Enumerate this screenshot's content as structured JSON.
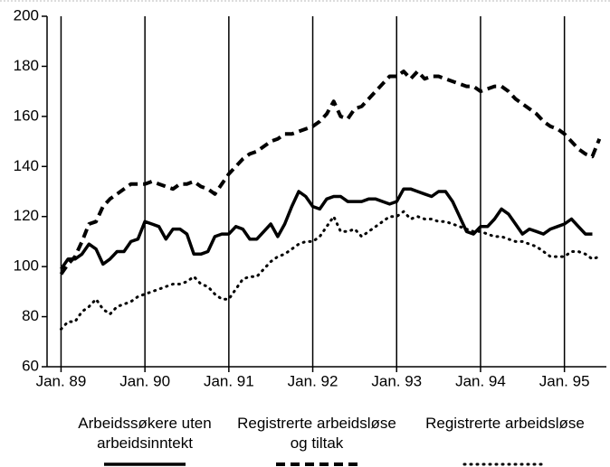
{
  "chart_data": {
    "type": "line",
    "xlim": [
      -2,
      78
    ],
    "ylim": [
      60,
      200
    ],
    "yticks": [
      60,
      80,
      100,
      120,
      140,
      160,
      180,
      200
    ],
    "xticks": [
      {
        "value": 0,
        "label": "Jan. 89"
      },
      {
        "value": 12,
        "label": "Jan. 90"
      },
      {
        "value": 24,
        "label": "Jan. 91"
      },
      {
        "value": 36,
        "label": "Jan. 92"
      },
      {
        "value": 48,
        "label": "Jan. 93"
      },
      {
        "value": 60,
        "label": "Jan. 94"
      },
      {
        "value": 72,
        "label": "Jan. 95"
      }
    ],
    "grid": true,
    "legend": "bottom",
    "series": [
      {
        "name": "Arbeidssøkere uten arbeidsinntekt",
        "color": "#000000",
        "dash": "solid",
        "x": [
          0,
          1,
          2,
          3,
          4,
          5,
          6,
          7,
          8,
          9,
          10,
          11,
          12,
          13,
          14,
          15,
          16,
          17,
          18,
          19,
          20,
          21,
          22,
          23,
          24,
          25,
          26,
          27,
          28,
          29,
          30,
          31,
          32,
          33,
          34,
          35,
          36,
          37,
          38,
          39,
          40,
          41,
          42,
          43,
          44,
          45,
          46,
          47,
          48,
          49,
          50,
          51,
          52,
          53,
          54,
          55,
          56,
          57,
          58,
          59,
          60,
          61,
          62,
          63,
          64,
          65,
          66,
          67,
          68,
          69,
          70,
          71,
          72,
          73,
          74,
          75,
          76
        ],
        "values": [
          99,
          103,
          103,
          105,
          109,
          107,
          101,
          103,
          106,
          106,
          110,
          111,
          118,
          117,
          116,
          111,
          115,
          115,
          113,
          105,
          105,
          106,
          112,
          113,
          113,
          116,
          115,
          111,
          111,
          114,
          117,
          112,
          117,
          124,
          130,
          128,
          124,
          123,
          127,
          128,
          128,
          126,
          126,
          126,
          127,
          127,
          126,
          125,
          126,
          131,
          131,
          130,
          129,
          128,
          130,
          130,
          126,
          120,
          114,
          113,
          116,
          116,
          119,
          123,
          121,
          117,
          113,
          115,
          114,
          113,
          115,
          116,
          117,
          119,
          116,
          113,
          113
        ]
      },
      {
        "name": "Registrerte arbeidsløse og tiltak",
        "color": "#000000",
        "dash": "dashed",
        "x": [
          0,
          1,
          2,
          3,
          4,
          5,
          6,
          7,
          8,
          9,
          10,
          11,
          12,
          13,
          14,
          15,
          16,
          17,
          18,
          19,
          20,
          21,
          22,
          23,
          24,
          25,
          26,
          27,
          28,
          29,
          30,
          31,
          32,
          33,
          34,
          35,
          36,
          37,
          38,
          39,
          40,
          41,
          42,
          43,
          44,
          45,
          46,
          47,
          48,
          49,
          50,
          51,
          52,
          53,
          54,
          55,
          56,
          57,
          58,
          59,
          60,
          61,
          62,
          63,
          64,
          65,
          66,
          67,
          68,
          69,
          70,
          71,
          72,
          73,
          74,
          75,
          76,
          77
        ],
        "values": [
          97,
          101,
          104,
          110,
          117,
          118,
          124,
          127,
          129,
          131,
          133,
          133,
          133,
          134,
          133,
          132,
          131,
          133,
          133,
          134,
          132,
          131,
          129,
          133,
          137,
          140,
          143,
          145,
          146,
          148,
          150,
          151,
          153,
          153,
          154,
          155,
          156,
          158,
          161,
          166,
          160,
          159,
          163,
          164,
          167,
          170,
          173,
          176,
          176,
          178,
          175,
          178,
          175,
          176,
          176,
          175,
          174,
          173,
          172,
          172,
          170,
          171,
          172,
          172,
          170,
          167,
          165,
          163,
          161,
          158,
          156,
          155,
          153,
          150,
          147,
          145,
          144,
          151
        ]
      },
      {
        "name": "Registrerte arbeidsløse",
        "color": "#000000",
        "dash": "dotted",
        "x": [
          0,
          1,
          2,
          3,
          4,
          5,
          6,
          7,
          8,
          9,
          10,
          11,
          12,
          13,
          14,
          15,
          16,
          17,
          18,
          19,
          20,
          21,
          22,
          23,
          24,
          25,
          26,
          27,
          28,
          29,
          30,
          31,
          32,
          33,
          34,
          35,
          36,
          37,
          38,
          39,
          40,
          41,
          42,
          43,
          44,
          45,
          46,
          47,
          48,
          49,
          50,
          51,
          52,
          53,
          54,
          55,
          56,
          57,
          58,
          59,
          60,
          61,
          62,
          63,
          64,
          65,
          66,
          67,
          68,
          69,
          70,
          71,
          72,
          73,
          74,
          75,
          76,
          77
        ],
        "values": [
          75,
          78,
          78,
          82,
          84,
          87,
          83,
          81,
          84,
          85,
          86,
          88,
          89,
          90,
          91,
          92,
          93,
          93,
          94,
          96,
          93,
          92,
          89,
          87,
          87,
          91,
          95,
          96,
          96,
          99,
          102,
          104,
          105,
          107,
          109,
          110,
          110,
          112,
          116,
          120,
          114,
          114,
          115,
          112,
          114,
          116,
          118,
          120,
          120,
          122,
          119,
          120,
          119,
          119,
          118,
          118,
          117,
          116,
          115,
          114,
          114,
          113,
          112,
          112,
          111,
          110,
          110,
          109,
          108,
          106,
          104,
          104,
          104,
          106,
          106,
          105,
          103,
          104
        ]
      }
    ]
  }
}
